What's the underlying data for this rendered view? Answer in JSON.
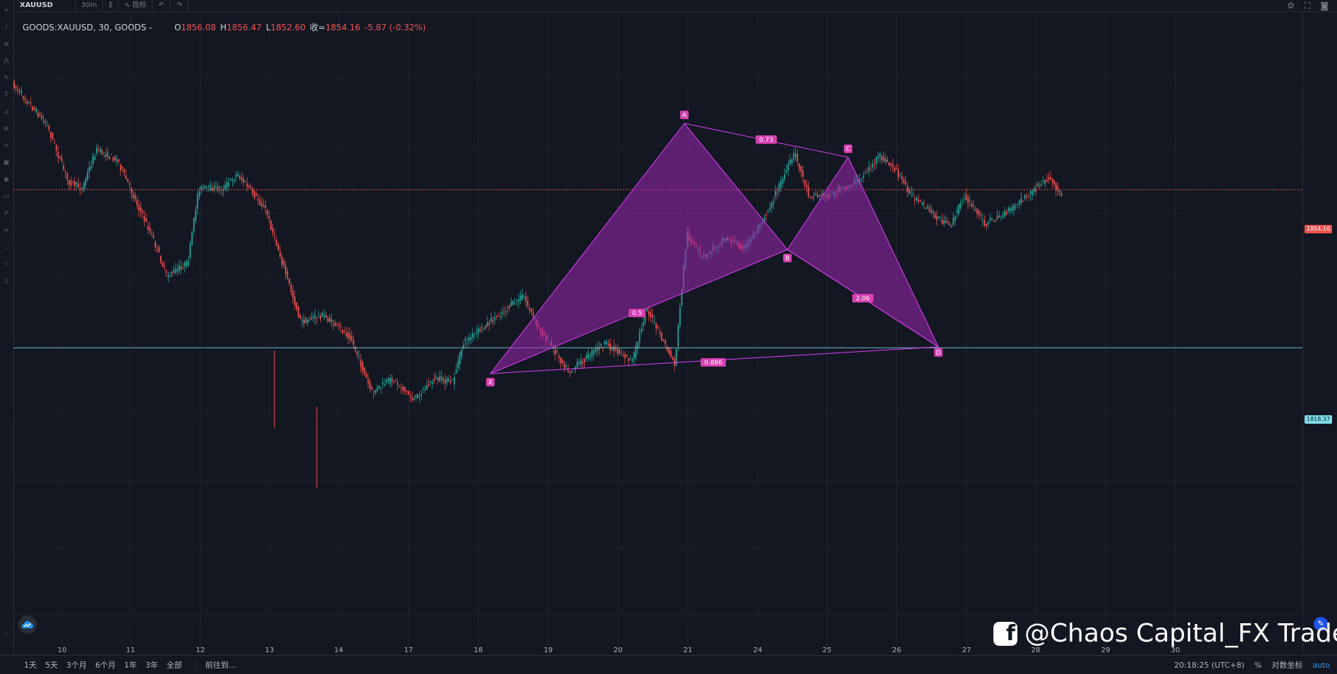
{
  "topbar": {
    "symbol": "XAUUSD",
    "interval": "30m",
    "indicators_label": "指标"
  },
  "legend": {
    "symbol_full": "GOODS:XAUUSD, 30, GOODS",
    "open_label": "O",
    "open": "1856.08",
    "high_label": "H",
    "high": "1856.47",
    "low_label": "L",
    "low": "1852.60",
    "close_label": "收=",
    "close": "1854.16",
    "change": "-5.87 (-0.32%)"
  },
  "colors": {
    "background": "#131722",
    "up_candle": "#26a69a",
    "down_candle": "#ef5350",
    "pattern_fill": "#9c27b0",
    "pattern_stroke": "#e040fb",
    "price_line": "#ef5350",
    "support_line": "#80deea"
  },
  "price_labels": {
    "current": "1854.16",
    "level": "1818.37"
  },
  "pattern": {
    "points": [
      "X",
      "A",
      "B",
      "C",
      "D"
    ],
    "ratios": {
      "xa_ab": "0.5",
      "ac": "0.73",
      "bd": "2.06",
      "xd": "0.886"
    }
  },
  "x_axis": {
    "ticks": [
      "10",
      "11",
      "12",
      "13",
      "14",
      "17",
      "18",
      "19",
      "20",
      "21",
      "24",
      "25",
      "26",
      "27",
      "28",
      "29",
      "30"
    ]
  },
  "chart_data": {
    "type": "candlestick",
    "symbol": "GOODS:XAUUSD",
    "interval": "30",
    "ohlc_last": {
      "open": 1856.08,
      "high": 1856.47,
      "low": 1852.6,
      "close": 1854.16
    },
    "change": -5.87,
    "change_pct": -0.32,
    "horizontal_lines": [
      1854.16,
      1818.37
    ],
    "harmonic_pattern": {
      "points": [
        "X",
        "A",
        "B",
        "C",
        "D"
      ],
      "ratios": [
        0.5,
        0.73,
        2.06,
        0.886
      ]
    },
    "x_tick_labels": [
      "10",
      "11",
      "12",
      "13",
      "14",
      "17",
      "18",
      "19",
      "20",
      "21",
      "24",
      "25",
      "26",
      "27",
      "28",
      "29",
      "30"
    ],
    "grid": true
  },
  "bottombar": {
    "ranges": [
      "1天",
      "5天",
      "3个月",
      "6个月",
      "1年",
      "3年",
      "全部"
    ],
    "goto": "前往到...",
    "time": "20:18:25 (UTC+8)",
    "percent": "%",
    "log": "对数坐标",
    "auto": "auto"
  },
  "watermark": {
    "icon": "facebook-icon",
    "text": "@Chaos Capital_FX Trader"
  }
}
